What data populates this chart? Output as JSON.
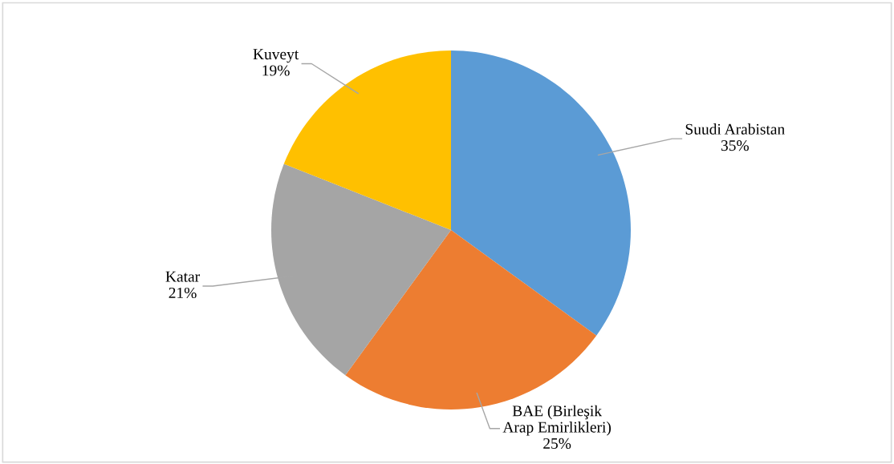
{
  "chart_data": {
    "type": "pie",
    "categories": [
      "Suudi Arabistan",
      "BAE (Birleşik\nArap Emirlikleri)",
      "Katar",
      "Kuveyt"
    ],
    "values": [
      35,
      25,
      21,
      19
    ],
    "value_labels": [
      "35%",
      "25%",
      "21%",
      "19%"
    ],
    "colors": [
      "#5b9bd5",
      "#ed7d31",
      "#a5a5a5",
      "#ffc000"
    ],
    "legend": false
  }
}
